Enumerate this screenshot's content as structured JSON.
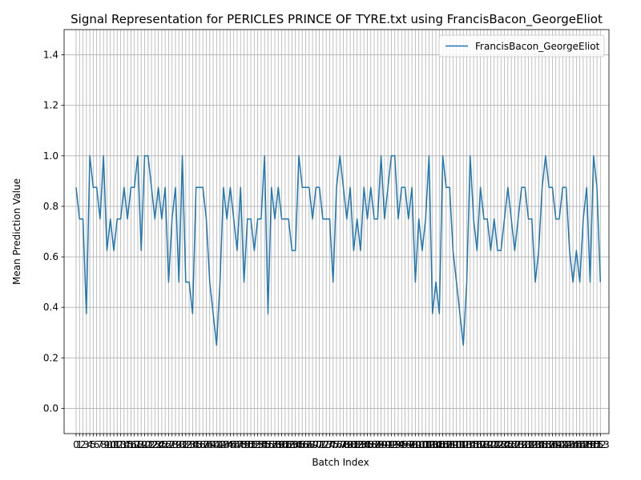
{
  "chart_data": {
    "type": "line",
    "title": "Signal Representation for PERICLES PRINCE OF TYRE.txt using FrancisBacon_GeorgeEliot",
    "xlabel": "Batch Index",
    "ylabel": "Mean Prediction Value",
    "xlim": [
      -3.5,
      155.5
    ],
    "ylim": [
      -0.1,
      1.5
    ],
    "yticks": [
      0.0,
      0.2,
      0.4,
      0.6,
      0.8,
      1.0,
      1.2,
      1.4
    ],
    "ytick_labels": [
      "0.0",
      "0.2",
      "0.4",
      "0.6",
      "0.8",
      "1.0",
      "1.2",
      "1.4"
    ],
    "grid": true,
    "legend_position": "top-right",
    "series": [
      {
        "name": "FrancisBacon_GeorgeEliot",
        "color": "#1f77b4",
        "x": [
          0,
          1,
          2,
          3,
          4,
          5,
          6,
          7,
          8,
          9,
          10,
          11,
          12,
          13,
          14,
          15,
          16,
          17,
          18,
          19,
          20,
          21,
          22,
          23,
          24,
          25,
          26,
          27,
          28,
          29,
          30,
          31,
          32,
          33,
          34,
          35,
          36,
          37,
          38,
          39,
          40,
          41,
          42,
          43,
          44,
          45,
          46,
          47,
          48,
          49,
          50,
          51,
          52,
          53,
          54,
          55,
          56,
          57,
          58,
          59,
          60,
          61,
          62,
          63,
          64,
          65,
          66,
          67,
          68,
          69,
          70,
          71,
          72,
          73,
          74,
          75,
          76,
          77,
          78,
          79,
          80,
          81,
          82,
          83,
          84,
          85,
          86,
          87,
          88,
          89,
          90,
          91,
          92,
          93,
          94,
          95,
          96,
          97,
          98,
          99,
          100,
          101,
          102,
          103,
          104,
          105,
          106,
          107,
          108,
          109,
          110,
          111,
          112,
          113,
          114,
          115,
          116,
          117,
          118,
          119,
          120,
          121,
          122,
          123,
          124,
          125,
          126,
          127,
          128,
          129,
          130,
          131,
          132,
          133,
          134,
          135,
          136,
          137,
          138,
          139,
          140,
          141,
          142,
          143,
          144,
          145,
          146,
          147,
          148,
          149,
          150,
          151,
          152,
          153
        ],
        "values": [
          0.875,
          0.75,
          0.75,
          0.375,
          1.0,
          0.875,
          0.875,
          0.75,
          1.0,
          0.625,
          0.75,
          0.625,
          0.75,
          0.75,
          0.875,
          0.75,
          0.875,
          0.875,
          1.0,
          0.625,
          1.0,
          1.0,
          0.875,
          0.75,
          0.875,
          0.75,
          0.875,
          0.5,
          0.75,
          0.875,
          0.5,
          1.0,
          0.5,
          0.5,
          0.375,
          0.875,
          0.875,
          0.875,
          0.75,
          0.5,
          0.375,
          0.25,
          0.5,
          0.875,
          0.75,
          0.875,
          0.75,
          0.625,
          0.875,
          0.5,
          0.75,
          0.75,
          0.625,
          0.75,
          0.75,
          1.0,
          0.375,
          0.875,
          0.75,
          0.875,
          0.75,
          0.75,
          0.75,
          0.625,
          0.625,
          1.0,
          0.875,
          0.875,
          0.875,
          0.75,
          0.875,
          0.875,
          0.75,
          0.75,
          0.75,
          0.5,
          0.875,
          1.0,
          0.875,
          0.75,
          0.875,
          0.625,
          0.75,
          0.625,
          0.875,
          0.75,
          0.875,
          0.75,
          0.75,
          1.0,
          0.75,
          0.875,
          1.0,
          1.0,
          0.75,
          0.875,
          0.875,
          0.75,
          0.875,
          0.5,
          0.75,
          0.625,
          0.75,
          1.0,
          0.375,
          0.5,
          0.375,
          1.0,
          0.875,
          0.875,
          0.625,
          0.5,
          0.375,
          0.25,
          0.5,
          1.0,
          0.75,
          0.625,
          0.875,
          0.75,
          0.75,
          0.625,
          0.75,
          0.625,
          0.625,
          0.75,
          0.875,
          0.75,
          0.625,
          0.75,
          0.875,
          0.875,
          0.75,
          0.75,
          0.5,
          0.625,
          0.875,
          1.0,
          0.875,
          0.875,
          0.75,
          0.75,
          0.875,
          0.875,
          0.625,
          0.5,
          0.625,
          0.5,
          0.75,
          0.875,
          0.5,
          1.0,
          0.875,
          0.5
        ]
      }
    ]
  }
}
